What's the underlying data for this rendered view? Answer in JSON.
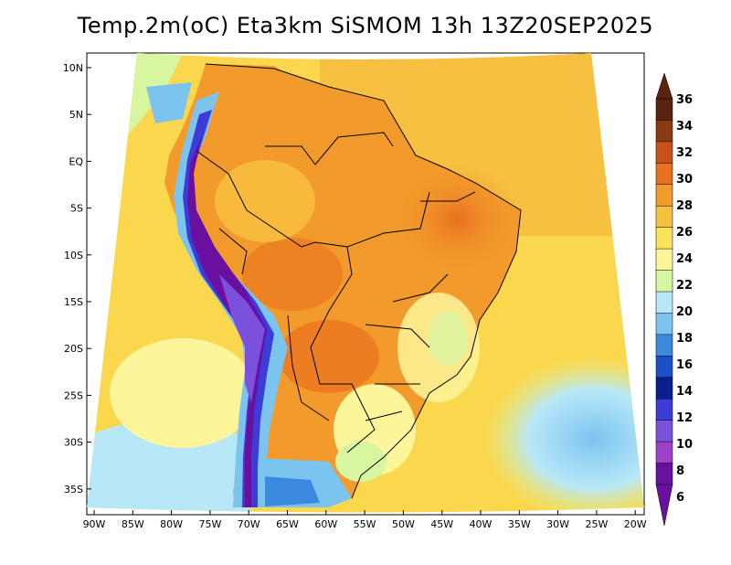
{
  "title": "Temp.2m(oC) Eta3km SiSMOM 13h 13Z20SEP2025",
  "map": {
    "variable": "2 m air temperature",
    "units": "oC",
    "lat_labels": [
      "10N",
      "5N",
      "EQ",
      "5S",
      "10S",
      "15S",
      "20S",
      "25S",
      "30S",
      "35S"
    ],
    "lon_labels": [
      "90W",
      "85W",
      "80W",
      "75W",
      "70W",
      "65W",
      "60W",
      "55W",
      "50W",
      "45W",
      "40W",
      "35W",
      "30W",
      "25W",
      "20W"
    ]
  },
  "colorbar": {
    "labels": [
      "36",
      "34",
      "32",
      "30",
      "28",
      "26",
      "24",
      "22",
      "20",
      "18",
      "16",
      "14",
      "12",
      "10",
      "8",
      "6"
    ],
    "colors": [
      "#5a2310",
      "#8c3a10",
      "#c8501a",
      "#e8701e",
      "#f39a2c",
      "#f7c040",
      "#fbe25a",
      "#fdf59a",
      "#d8f5a0",
      "#b8e8f8",
      "#7cc4f0",
      "#3c8ae0",
      "#1c50c8",
      "#0a1e8c",
      "#3c3cd8",
      "#7a50dc",
      "#a040c8",
      "#6a10a0"
    ],
    "over_color": "#5a2310",
    "under_color": "#6a10a0"
  }
}
